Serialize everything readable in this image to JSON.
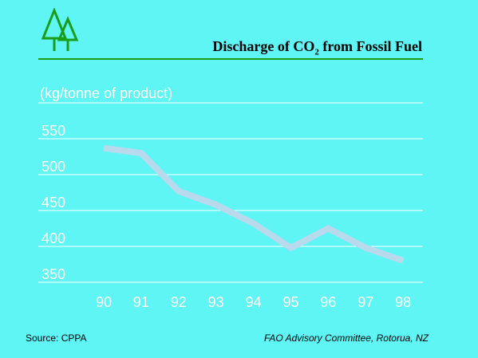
{
  "title": {
    "prefix": "Discharge of CO",
    "subscript": "2",
    "suffix": " from Fossil Fuel"
  },
  "colors": {
    "background": "#5ff5f5",
    "logo_green": "#1a9e1a",
    "line": "#b9d9ec",
    "grid": "#ffffff",
    "ticks": "#ffffff"
  },
  "logo": {
    "icon": "twin-pine-trees-icon"
  },
  "footer": {
    "source": "Source: CPPA",
    "credit": "FAO Advisory Committee, Rotorua, NZ"
  },
  "chart_data": {
    "type": "line",
    "title": "Discharge of CO2 from Fossil Fuel",
    "ylabel": "(kg/tonne of product)",
    "xlabel": "",
    "x": [
      "90",
      "91",
      "92",
      "93",
      "94",
      "95",
      "96",
      "97",
      "98"
    ],
    "yticks": [
      550,
      500,
      450,
      400,
      350
    ],
    "ylim": [
      340,
      580
    ],
    "grid": true,
    "legend": "none",
    "series": [
      {
        "values": [
          537,
          530,
          477,
          458,
          432,
          398,
          425,
          398,
          380
        ]
      }
    ]
  }
}
